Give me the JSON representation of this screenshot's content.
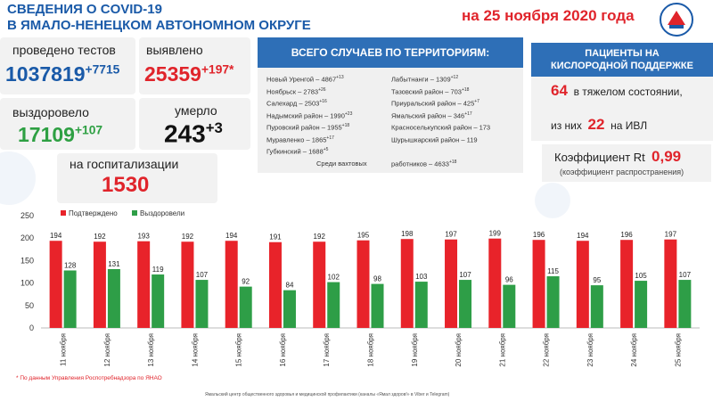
{
  "header": {
    "title_line1": "СВЕДЕНИЯ О COVID-19",
    "title_line2": "В ЯМАЛО-НЕНЕЦКОМ АВТОНОМНОМ ОКРУГЕ",
    "date": "на 25 ноября 2020 года"
  },
  "stats": {
    "tests_label": "проведено тестов",
    "tests_value": "1037819",
    "tests_delta": "+7715",
    "found_label": "выявлено",
    "found_value": "25359",
    "found_delta": "+197*",
    "recovered_label": "выздоровело",
    "recovered_value": "17109",
    "recovered_delta": "+107",
    "died_label": "умерло",
    "died_value": "243",
    "died_delta": "+3",
    "hosp_label": "на госпитализации",
    "hosp_value": "1530"
  },
  "territories": {
    "title": "ВСЕГО СЛУЧАЕВ ПО ТЕРРИТОРИЯМ:",
    "left": [
      {
        "name": "Новый Уренгой",
        "value": "4867",
        "delta": "+13"
      },
      {
        "name": "Ноябрьск",
        "value": "2783",
        "delta": "+26"
      },
      {
        "name": "Салехард",
        "value": "2503",
        "delta": "+16"
      },
      {
        "name": "Надымский район",
        "value": "1990",
        "delta": "+23"
      },
      {
        "name": "Пуровский район",
        "value": "1955",
        "delta": "+18"
      },
      {
        "name": "Муравленко",
        "value": "1865",
        "delta": "+17"
      },
      {
        "name": "Губкинский",
        "value": "1688",
        "delta": "+5"
      }
    ],
    "right": [
      {
        "name": "Лабытнанги",
        "value": "1309",
        "delta": "+12"
      },
      {
        "name": "Тазовский район",
        "value": "703",
        "delta": "+18"
      },
      {
        "name": "Приуральский район",
        "value": "425",
        "delta": "+7"
      },
      {
        "name": "Ямальский район",
        "value": "346",
        "delta": "+17"
      },
      {
        "name": "Красноселькупский район",
        "value": "173",
        "delta": ""
      },
      {
        "name": "Шурышкарский район",
        "value": "119",
        "delta": ""
      }
    ],
    "shift_label_a": "Среди вахтовых",
    "shift_label_b": "работников",
    "shift_value": "4633",
    "shift_delta": "+18"
  },
  "oxygen": {
    "title_line1": "ПАЦИЕНТЫ НА",
    "title_line2": "КИСЛОРОДНОЙ ПОДДЕРЖКЕ",
    "severe_value": "64",
    "severe_label": "в тяжелом состоянии,",
    "ivl_prefix": "из них",
    "ivl_value": "22",
    "ivl_suffix": "на  ИВЛ",
    "rt_label": "Коэффициент Rt",
    "rt_value": "0,99",
    "rt_sub": "(коэффициент распространения)"
  },
  "footer": {
    "note": "* По данным Управления  Роспотребнадзора по ЯНАО",
    "source": "Ямальский центр общественного здоровья и медицинской профилактики (каналы «Ямал здоров!» в Viber  и Telegram)"
  },
  "colors": {
    "confirmed": "#e8232a",
    "recovered": "#2e9e47",
    "accent": "#1a5aa8"
  },
  "chart_data": {
    "type": "bar",
    "categories": [
      "11 ноября",
      "12 ноября",
      "13 ноября",
      "14 ноября",
      "15 ноября",
      "16 ноября",
      "17 ноября",
      "18 ноября",
      "19 ноября",
      "20 ноября",
      "21 ноября",
      "22 ноября",
      "23 ноября",
      "24 ноября",
      "25 ноября"
    ],
    "series": [
      {
        "name": "Подтверждено",
        "values": [
          194,
          192,
          193,
          192,
          194,
          191,
          192,
          195,
          198,
          197,
          199,
          196,
          194,
          196,
          197
        ]
      },
      {
        "name": "Выздоровели",
        "values": [
          128,
          131,
          119,
          107,
          92,
          84,
          102,
          98,
          103,
          107,
          96,
          115,
          95,
          105,
          107
        ]
      }
    ],
    "ylim": [
      0,
      250
    ],
    "yticks": [
      0,
      50,
      100,
      150,
      200,
      250
    ],
    "grid": false,
    "legend": "top-left"
  }
}
